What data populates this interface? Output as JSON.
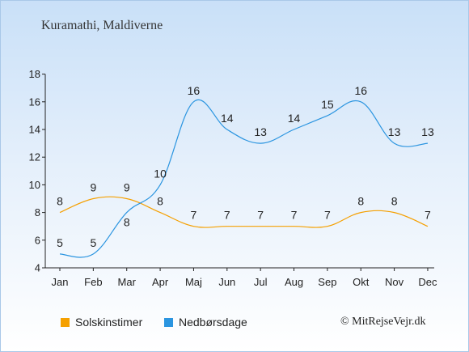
{
  "title": "Kuramathi, Maldiverne",
  "credit": "© MitRejseVejr.dk",
  "colors": {
    "sun": "#f5a000",
    "rain": "#2b95e0"
  },
  "chart_data": {
    "type": "line",
    "categories": [
      "Jan",
      "Feb",
      "Mar",
      "Apr",
      "Maj",
      "Jun",
      "Jul",
      "Aug",
      "Sep",
      "Okt",
      "Nov",
      "Dec"
    ],
    "yticks": [
      4,
      6,
      8,
      10,
      12,
      14,
      16,
      18
    ],
    "ylim": [
      4,
      18
    ],
    "grid": false,
    "legend_position": "bottom",
    "series": [
      {
        "name": "Solskinstimer",
        "values": [
          8,
          9,
          9,
          8,
          7,
          7,
          7,
          7,
          7,
          8,
          8,
          7
        ]
      },
      {
        "name": "Nedbørsdage",
        "values": [
          5,
          5,
          8,
          10,
          16,
          14,
          13,
          14,
          15,
          16,
          13,
          13
        ]
      }
    ]
  }
}
